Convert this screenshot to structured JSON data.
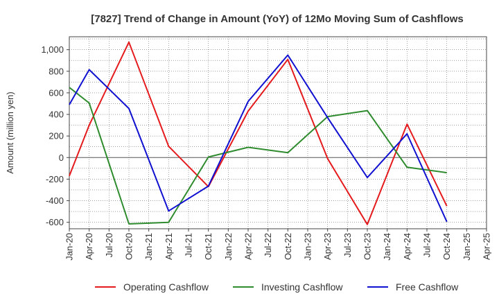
{
  "chart_data": {
    "type": "line",
    "title": "[7827]  Trend of Change in Amount (YoY) of 12Mo Moving Sum of Cashflows",
    "xlabel": "",
    "ylabel": "Amount (million yen)",
    "ylim": [
      -660,
      1120
    ],
    "yticks": [
      -600,
      -400,
      -200,
      0,
      200,
      400,
      600,
      800,
      1000
    ],
    "ytick_labels": [
      "-600",
      "-400",
      "-200",
      "0",
      "200",
      "400",
      "600",
      "800",
      "1,000"
    ],
    "categories": [
      "Jan-20",
      "Apr-20",
      "Jul-20",
      "Oct-20",
      "Jan-21",
      "Apr-21",
      "Jul-21",
      "Oct-21",
      "Jan-22",
      "Apr-22",
      "Jul-22",
      "Oct-22",
      "Jan-23",
      "Apr-23",
      "Jul-23",
      "Oct-23",
      "Jan-24",
      "Apr-24",
      "Jul-24",
      "Oct-24",
      "Jan-25",
      "Apr-25"
    ],
    "grid": true,
    "legend_position": "bottom",
    "series": [
      {
        "name": "Operating Cashflow",
        "color": "#e41a1c",
        "values": [
          -170,
          300,
          null,
          1070,
          null,
          105,
          null,
          -270,
          null,
          430,
          null,
          910,
          null,
          -10,
          null,
          -620,
          null,
          310,
          null,
          -450,
          null,
          null
        ]
      },
      {
        "name": "Investing Cashflow",
        "color": "#2e8b2e",
        "values": [
          650,
          505,
          null,
          -615,
          null,
          -600,
          null,
          5,
          null,
          95,
          null,
          45,
          null,
          380,
          null,
          435,
          null,
          -90,
          null,
          -140,
          null,
          null
        ]
      },
      {
        "name": "Free Cashflow",
        "color": "#1010d0",
        "values": [
          490,
          815,
          null,
          455,
          null,
          -495,
          null,
          -265,
          null,
          520,
          null,
          950,
          null,
          370,
          null,
          -185,
          null,
          220,
          null,
          -595,
          null,
          null
        ]
      }
    ]
  }
}
